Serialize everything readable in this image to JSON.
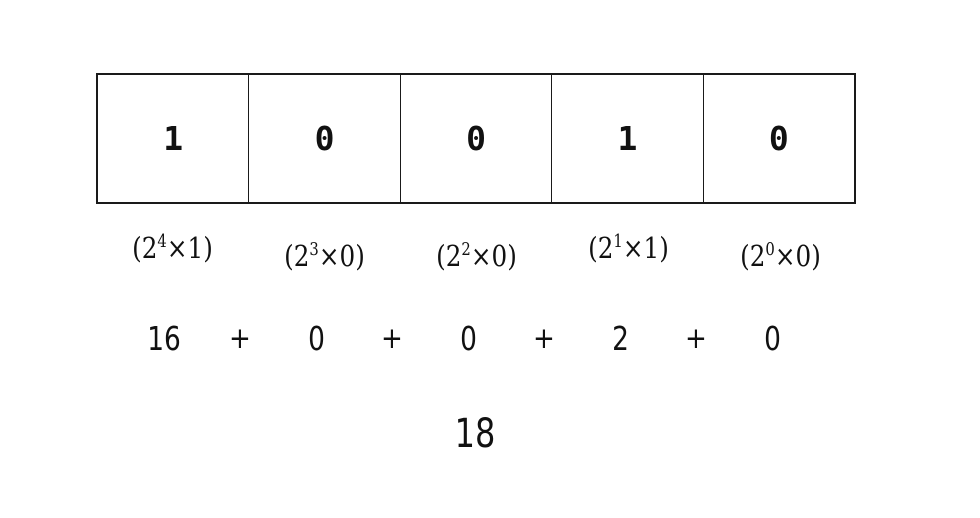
{
  "bits": [
    "1",
    "0",
    "0",
    "1",
    "0"
  ],
  "expansion_terms": [
    {
      "open": "(",
      "base": "2",
      "exponent": "4",
      "times": "×",
      "multiplier": "1",
      "close": ")"
    },
    {
      "open": "(",
      "base": "2",
      "exponent": "3",
      "times": "×",
      "multiplier": "0",
      "close": ")"
    },
    {
      "open": "(",
      "base": "2",
      "exponent": "2",
      "times": "×",
      "multiplier": "0",
      "close": ")"
    },
    {
      "open": "(",
      "base": "2",
      "exponent": "1",
      "times": "×",
      "multiplier": "1",
      "close": ")"
    },
    {
      "open": "(",
      "base": "2",
      "exponent": "0",
      "times": "×",
      "multiplier": "0",
      "close": ")"
    }
  ],
  "sum_row": {
    "values": [
      "16",
      "0",
      "0",
      "2",
      "0"
    ],
    "operator": "+"
  },
  "result": "18",
  "colors": {
    "background": "#ffffff",
    "ink": "#111111",
    "border": "#1a1a1a"
  }
}
